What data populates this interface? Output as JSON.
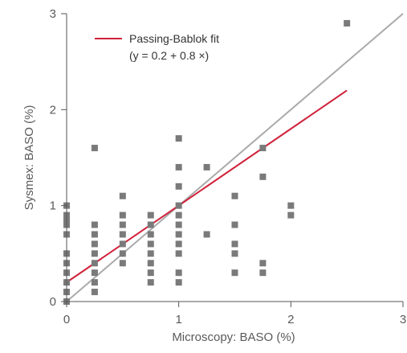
{
  "chart_data": {
    "type": "scatter",
    "title": "",
    "xlabel": "Microscopy: BASO (%)",
    "ylabel": "Sysmex: BASO (%)",
    "xlim": [
      0,
      3
    ],
    "ylim": [
      0,
      3
    ],
    "xticks": [
      "0",
      "1",
      "2",
      "3"
    ],
    "yticks": [
      "0",
      "1",
      "2",
      "3"
    ],
    "grid": false,
    "legend_position": "top-left",
    "colors": {
      "points": "#7a7a7a",
      "fit_line": "#d0213a",
      "identity_line": "#aaaaaa",
      "axis": "#555555"
    },
    "legend": {
      "line1": "Passing-Bablok fit",
      "line2": "(y = 0.2 + 0.8 ×)"
    },
    "fit": {
      "intercept": 0.2,
      "slope": 0.8,
      "x_range": [
        0,
        2.5
      ]
    },
    "identity": {
      "x_range": [
        0,
        3
      ]
    },
    "points": [
      [
        0,
        0
      ],
      [
        0,
        0.1
      ],
      [
        0,
        0.2
      ],
      [
        0,
        0.3
      ],
      [
        0,
        0.4
      ],
      [
        0,
        0.5
      ],
      [
        0,
        0.7
      ],
      [
        0,
        0.8
      ],
      [
        0,
        0.85
      ],
      [
        0,
        0.9
      ],
      [
        0,
        1.0
      ],
      [
        0.25,
        0.1
      ],
      [
        0.25,
        0.2
      ],
      [
        0.25,
        0.3
      ],
      [
        0.25,
        0.4
      ],
      [
        0.25,
        0.5
      ],
      [
        0.25,
        0.6
      ],
      [
        0.25,
        0.7
      ],
      [
        0.25,
        0.8
      ],
      [
        0.25,
        1.6
      ],
      [
        0.5,
        0.4
      ],
      [
        0.5,
        0.5
      ],
      [
        0.5,
        0.6
      ],
      [
        0.5,
        0.7
      ],
      [
        0.5,
        0.8
      ],
      [
        0.5,
        0.9
      ],
      [
        0.5,
        1.1
      ],
      [
        0.75,
        0.2
      ],
      [
        0.75,
        0.3
      ],
      [
        0.75,
        0.4
      ],
      [
        0.75,
        0.5
      ],
      [
        0.75,
        0.6
      ],
      [
        0.75,
        0.7
      ],
      [
        0.75,
        0.8
      ],
      [
        0.75,
        0.9
      ],
      [
        1.0,
        0.2
      ],
      [
        1.0,
        0.3
      ],
      [
        1.0,
        0.5
      ],
      [
        1.0,
        0.6
      ],
      [
        1.0,
        0.7
      ],
      [
        1.0,
        0.8
      ],
      [
        1.0,
        0.9
      ],
      [
        1.0,
        1.0
      ],
      [
        1.0,
        1.2
      ],
      [
        1.0,
        1.4
      ],
      [
        1.0,
        1.7
      ],
      [
        1.25,
        0.7
      ],
      [
        1.25,
        1.4
      ],
      [
        1.5,
        0.3
      ],
      [
        1.5,
        0.5
      ],
      [
        1.5,
        0.6
      ],
      [
        1.5,
        0.8
      ],
      [
        1.5,
        1.1
      ],
      [
        1.75,
        0.3
      ],
      [
        1.75,
        0.4
      ],
      [
        1.75,
        1.3
      ],
      [
        1.75,
        1.6
      ],
      [
        2.0,
        0.9
      ],
      [
        2.0,
        1.0
      ],
      [
        2.5,
        2.9
      ]
    ]
  }
}
